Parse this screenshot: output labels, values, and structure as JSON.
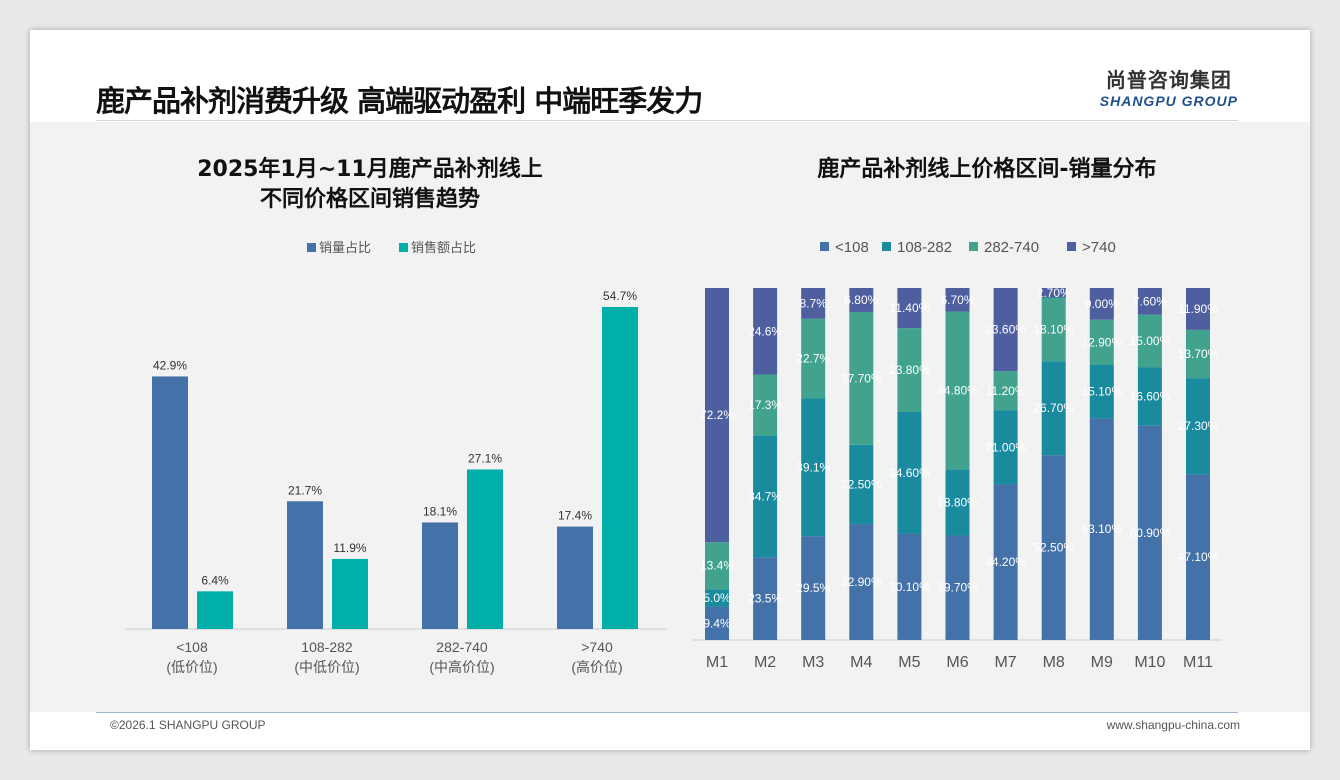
{
  "header": {
    "title": "鹿产品补剂消费升级 高端驱动盈利 中端旺季发力",
    "logo_cn": "尚普咨询集团",
    "logo_en": "SHANGPU GROUP"
  },
  "footer": {
    "copyright": "©2026.1 SHANGPU GROUP",
    "url": "www.shangpu-china.com"
  },
  "colors": {
    "blue": "#4472a8",
    "teal": "#00b0a8",
    "s1": "#4472a8",
    "s2": "#1a8a9e",
    "s3": "#41a38e",
    "s4": "#4e5fa0"
  },
  "chart_data": [
    {
      "type": "bar",
      "title": "2025年1月~11月鹿产品补剂线上\n不同价格区间销售趋势",
      "title_lines": [
        "2025年1月~11月鹿产品补剂线上",
        "不同价格区间销售趋势"
      ],
      "categories": [
        "<108",
        "108-282",
        "282-740",
        ">740"
      ],
      "subcategories": [
        "(低价位)",
        "(中低价位)",
        "(中高价位)",
        "(高价位)"
      ],
      "series": [
        {
          "name": "销量占比",
          "values": [
            42.9,
            21.7,
            18.1,
            17.4
          ]
        },
        {
          "name": "销售额占比",
          "values": [
            6.4,
            11.9,
            27.1,
            54.7
          ]
        }
      ],
      "unit": "%",
      "legend": "top-center",
      "ylim": [
        0,
        60
      ]
    },
    {
      "type": "bar",
      "stacked": true,
      "title": "鹿产品补剂线上价格区间-销量分布",
      "categories": [
        "M1",
        "M2",
        "M3",
        "M4",
        "M5",
        "M6",
        "M7",
        "M8",
        "M9",
        "M10",
        "M11"
      ],
      "series": [
        {
          "name": "<108",
          "values": [
            9.4,
            23.5,
            29.5,
            32.9,
            30.1,
            29.7,
            44.2,
            52.5,
            63.1,
            60.9,
            47.1
          ],
          "labels": [
            "9.4%",
            "23.5%",
            "29.5%",
            "32.90%",
            "30.10%",
            "29.70%",
            "44.20%",
            "52.50%",
            "63.10%",
            "60.90%",
            "47.10%"
          ]
        },
        {
          "name": "108-282",
          "values": [
            5.0,
            34.7,
            39.1,
            22.5,
            34.6,
            18.8,
            21.0,
            26.7,
            15.1,
            16.6,
            27.3
          ],
          "labels": [
            "5.0%",
            "34.7%",
            "39.1%",
            "22.50%",
            "34.60%",
            "18.80%",
            "21.00%",
            "26.70%",
            "15.10%",
            "16.60%",
            "27.30%"
          ]
        },
        {
          "name": "282-740",
          "values": [
            13.4,
            17.3,
            22.7,
            37.7,
            23.8,
            44.8,
            11.2,
            18.1,
            12.9,
            15.0,
            13.7
          ],
          "labels": [
            "13.4%",
            "17.3%",
            "22.7%",
            "37.70%",
            "23.80%",
            "44.80%",
            "11.20%",
            "18.10%",
            "12.90%",
            "15.00%",
            "13.70%"
          ]
        },
        {
          "name": ">740",
          "values": [
            72.2,
            24.6,
            8.7,
            6.8,
            11.4,
            6.7,
            23.6,
            2.7,
            9.0,
            7.6,
            11.9
          ],
          "labels": [
            "72.2%",
            "24.6%",
            "8.7%",
            "6.80%",
            "11.40%",
            "6.70%",
            "23.60%",
            "2.70%",
            "9.00%",
            "7.60%",
            "11.90%"
          ]
        }
      ],
      "legend": "top-center",
      "ylim": [
        0,
        100
      ]
    }
  ]
}
